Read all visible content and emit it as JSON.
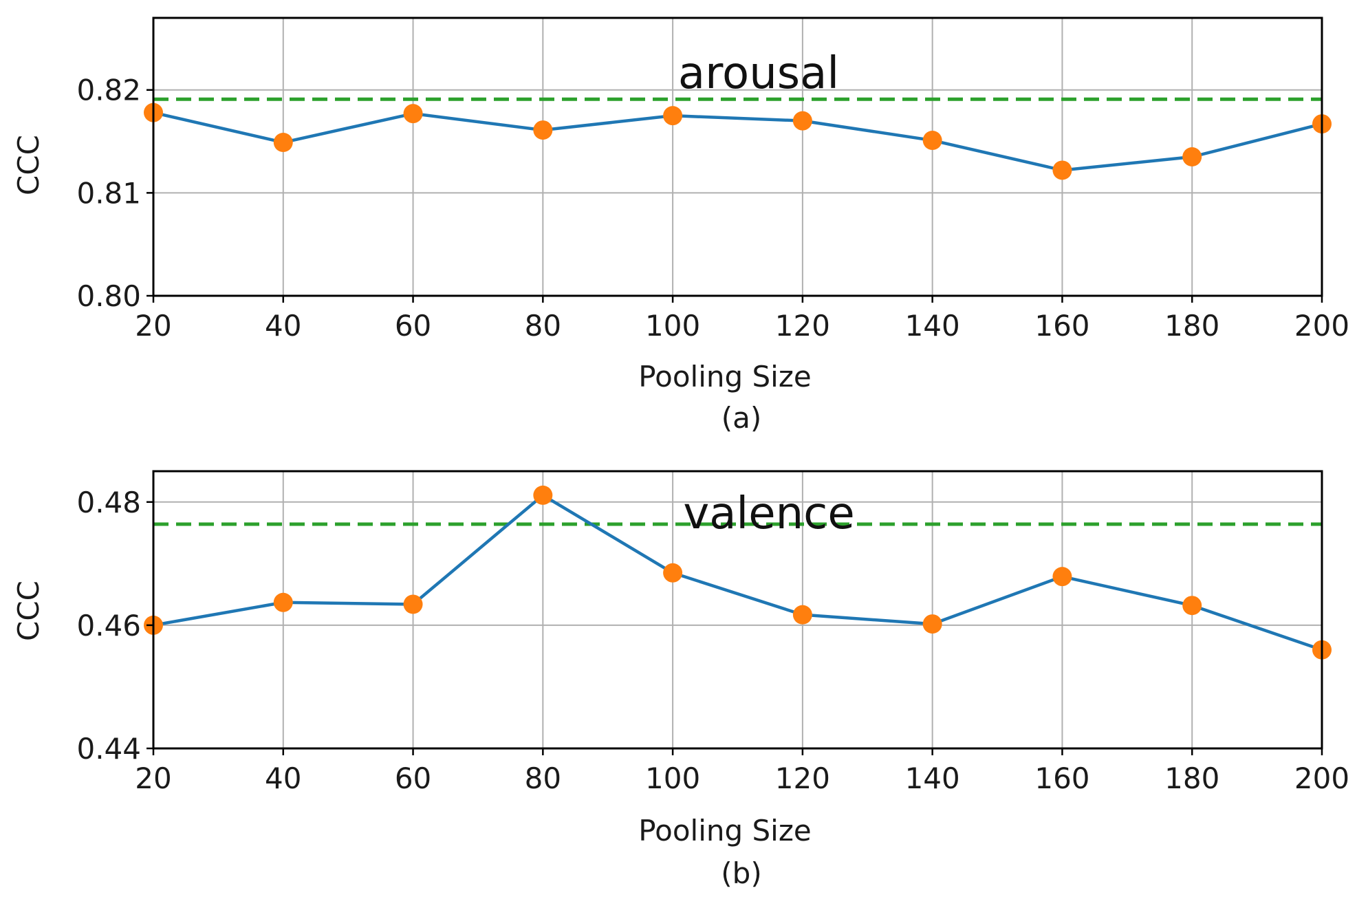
{
  "chart_data": [
    {
      "type": "line",
      "title": "arousal",
      "caption": "(a)",
      "xlabel": "Pooling Size",
      "ylabel": "CCC",
      "x": [
        20,
        40,
        60,
        80,
        100,
        120,
        140,
        160,
        180,
        200
      ],
      "xticks": [
        "20",
        "40",
        "60",
        "80",
        "100",
        "120",
        "140",
        "160",
        "180",
        "200"
      ],
      "ylim": [
        0.8,
        0.827
      ],
      "yticks": [
        0.8,
        0.81,
        0.82
      ],
      "ytick_labels": [
        "0.80",
        "0.81",
        "0.82"
      ],
      "grid": true,
      "series": [
        {
          "name": "CCC",
          "values": [
            0.8178,
            0.8149,
            0.8177,
            0.8161,
            0.8175,
            0.817,
            0.8151,
            0.8122,
            0.8135,
            0.8167
          ]
        }
      ],
      "reference_line": {
        "style": "dashed",
        "value": 0.8191
      },
      "colors": {
        "line": "#1f77b4",
        "marker": "#ff7f0e",
        "reference": "#2ca02c",
        "grid": "#b0b0b0"
      }
    },
    {
      "type": "line",
      "title": "valence",
      "caption": "(b)",
      "xlabel": "Pooling Size",
      "ylabel": "CCC",
      "x": [
        20,
        40,
        60,
        80,
        100,
        120,
        140,
        160,
        180,
        200
      ],
      "xticks": [
        "20",
        "40",
        "60",
        "80",
        "100",
        "120",
        "140",
        "160",
        "180",
        "200"
      ],
      "ylim": [
        0.44,
        0.485
      ],
      "yticks": [
        0.44,
        0.46,
        0.48
      ],
      "ytick_labels": [
        "0.44",
        "0.46",
        "0.48"
      ],
      "grid": true,
      "series": [
        {
          "name": "CCC",
          "values": [
            0.46,
            0.4637,
            0.4634,
            0.4811,
            0.4685,
            0.4617,
            0.4602,
            0.4679,
            0.4632,
            0.456
          ]
        }
      ],
      "reference_line": {
        "style": "dashed",
        "value": 0.4764
      },
      "colors": {
        "line": "#1f77b4",
        "marker": "#ff7f0e",
        "reference": "#2ca02c",
        "grid": "#b0b0b0"
      }
    }
  ]
}
